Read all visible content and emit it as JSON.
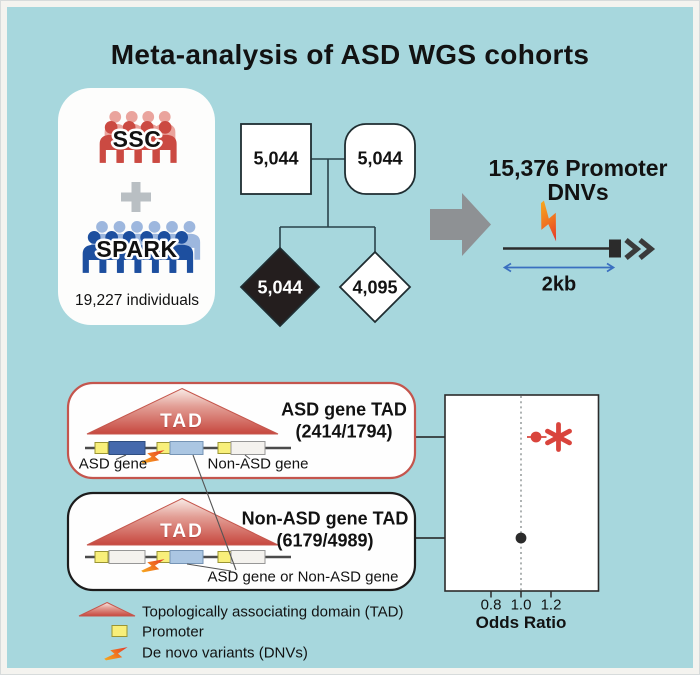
{
  "title": "Meta-analysis of ASD WGS cohorts",
  "cohort_panel": {
    "ssc_label": "SSC",
    "spark_label": "SPARK",
    "total_individuals": "19,227 individuals"
  },
  "pedigree": {
    "father_count": "5,044",
    "mother_count": "5,044",
    "proband_count": "5,044",
    "sibling_count": "4,095"
  },
  "promoter_section": {
    "headline_line1": "15,376 Promoter",
    "headline_line2": "DNVs",
    "scale_label": "2kb"
  },
  "tad_section": {
    "asd_box": {
      "tad_label": "TAD",
      "title": "ASD gene TAD",
      "counts": "(2414/1794)",
      "left_gene_label": "ASD gene",
      "right_gene_label": "Non-ASD gene"
    },
    "non_asd_box": {
      "tad_label": "TAD",
      "title": "Non-ASD gene TAD",
      "counts": "(6179/4989)",
      "gene_label": "ASD gene or Non-ASD gene"
    }
  },
  "chart_data": {
    "type": "scatter",
    "xlabel": "Odds Ratio",
    "xticks": [
      0.8,
      1.0,
      1.2
    ],
    "xtick_labels": [
      "0.8",
      "1.0",
      "1.2"
    ],
    "xlim": [
      0.5,
      1.5
    ],
    "reference_line": 1.0,
    "grid": false,
    "series": [
      {
        "name": "ASD gene TAD",
        "odds_ratio": 1.1,
        "ci_low": 1.04,
        "ci_high": 1.17,
        "significant": true,
        "significance_marker": "*",
        "color": "#d9443c"
      },
      {
        "name": "Non-ASD gene TAD",
        "odds_ratio": 1.0,
        "ci_low": 1.0,
        "ci_high": 1.0,
        "significant": false,
        "color": "#2b2b2b"
      }
    ]
  },
  "legend": {
    "items": [
      {
        "icon": "tad-triangle-icon",
        "label": "Topologically associating domain (TAD)"
      },
      {
        "icon": "promoter-icon",
        "label": "Promoter"
      },
      {
        "icon": "dnv-lightning-icon",
        "label": "De novo variants (DNVs)"
      }
    ]
  },
  "colors": {
    "background": "#a7d7dd",
    "ssc_red": "#cb4a42",
    "ssc_red_light": "#eaa49d",
    "spark_blue": "#1d4f9f",
    "spark_blue_light": "#9db7de",
    "accent_red": "#d9443c",
    "promoter_yellow": "#f8ef7a",
    "asd_gene_blue": "#4569ac",
    "mid_gene_blue": "#abc6e2"
  }
}
